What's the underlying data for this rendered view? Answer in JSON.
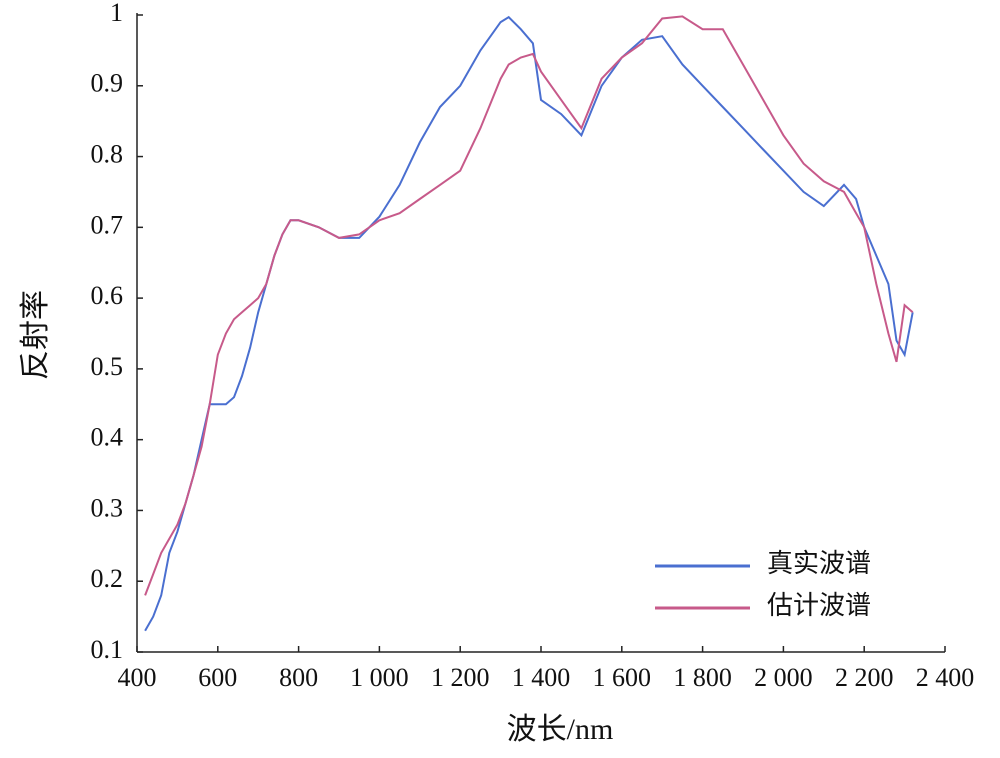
{
  "chart_data": {
    "type": "line",
    "x_label": "波长/nm",
    "y_label": "反射率",
    "x": [
      420,
      440,
      460,
      480,
      500,
      520,
      540,
      560,
      580,
      600,
      620,
      640,
      660,
      680,
      700,
      720,
      740,
      760,
      780,
      800,
      850,
      900,
      950,
      1000,
      1050,
      1100,
      1150,
      1200,
      1250,
      1300,
      1320,
      1350,
      1380,
      1400,
      1450,
      1500,
      1550,
      1600,
      1650,
      1700,
      1750,
      1800,
      1850,
      1900,
      1950,
      2000,
      2050,
      2100,
      2150,
      2180,
      2200,
      2230,
      2260,
      2280,
      2300,
      2320
    ],
    "series": [
      {
        "name": "真实波谱",
        "color": "#4a6fd0",
        "values": [
          0.13,
          0.15,
          0.18,
          0.24,
          0.27,
          0.31,
          0.35,
          0.4,
          0.45,
          0.45,
          0.45,
          0.46,
          0.49,
          0.53,
          0.58,
          0.62,
          0.66,
          0.69,
          0.71,
          0.71,
          0.7,
          0.685,
          0.685,
          0.715,
          0.76,
          0.82,
          0.87,
          0.9,
          0.95,
          0.99,
          0.997,
          0.98,
          0.96,
          0.88,
          0.86,
          0.83,
          0.9,
          0.94,
          0.965,
          0.97,
          0.93,
          0.9,
          0.87,
          0.84,
          0.81,
          0.78,
          0.75,
          0.73,
          0.76,
          0.74,
          0.7,
          0.66,
          0.62,
          0.54,
          0.52,
          0.58
        ]
      },
      {
        "name": "估计波谱",
        "color": "#c75a8a",
        "values": [
          0.18,
          0.21,
          0.24,
          0.26,
          0.28,
          0.31,
          0.35,
          0.39,
          0.45,
          0.52,
          0.55,
          0.57,
          0.58,
          0.59,
          0.6,
          0.62,
          0.66,
          0.69,
          0.71,
          0.71,
          0.7,
          0.685,
          0.69,
          0.71,
          0.72,
          0.74,
          0.76,
          0.78,
          0.84,
          0.91,
          0.93,
          0.94,
          0.945,
          0.92,
          0.88,
          0.84,
          0.91,
          0.94,
          0.96,
          0.995,
          0.998,
          0.98,
          0.98,
          0.93,
          0.88,
          0.83,
          0.79,
          0.765,
          0.75,
          0.72,
          0.7,
          0.62,
          0.55,
          0.51,
          0.59,
          0.58
        ]
      }
    ],
    "xlim": [
      400,
      2400
    ],
    "xticks": [
      400,
      600,
      800,
      {
        "value": 1000,
        "label": "1 000"
      },
      {
        "value": 1200,
        "label": "1 200"
      },
      {
        "value": 1400,
        "label": "1 400"
      },
      {
        "value": 1600,
        "label": "1 600"
      },
      {
        "value": 1800,
        "label": "1 800"
      },
      {
        "value": 2000,
        "label": "2 000"
      },
      {
        "value": 2200,
        "label": "2 200"
      },
      {
        "value": 2400,
        "label": "2 400"
      }
    ],
    "ylim": [
      0.1,
      1
    ],
    "yticks": [
      0.1,
      0.2,
      0.3,
      0.4,
      0.5,
      0.6,
      0.7,
      0.8,
      0.9,
      1
    ],
    "legend": "lower right"
  }
}
